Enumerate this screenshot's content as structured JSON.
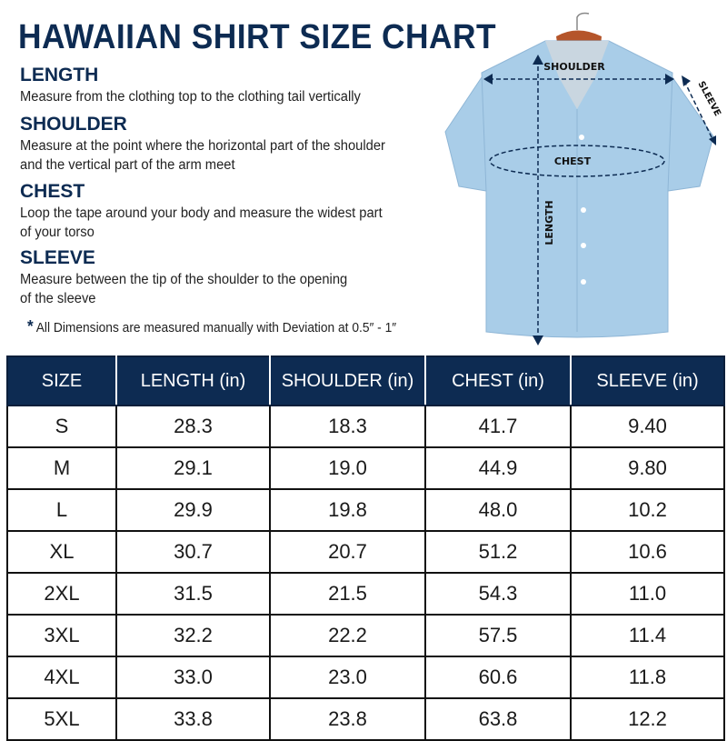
{
  "title": "HAWAIIAN SHIRT SIZE CHART",
  "sections": [
    {
      "heading": "LENGTH",
      "lines": [
        "Measure from the clothing top to the clothing tail vertically"
      ]
    },
    {
      "heading": "SHOULDER",
      "lines": [
        "Measure at the point where the horizontal part of the shoulder",
        "and the vertical part of the arm meet"
      ]
    },
    {
      "heading": "CHEST",
      "lines": [
        "Loop the tape around your body and measure the widest part",
        "of your torso"
      ]
    },
    {
      "heading": "SLEEVE",
      "lines": [
        "Measure between the tip of the shoulder to the opening",
        "of the sleeve"
      ]
    }
  ],
  "note": {
    "star": "*",
    "text": "All Dimensions are measured manually with Deviation at 0.5″ - 1″"
  },
  "diagram": {
    "shoulder": "SHOULDER",
    "chest": "CHEST",
    "length": "LENGTH",
    "sleeve": "SLEEVE",
    "shirt_color": "#a9cde8",
    "accent": "#0d2b52"
  },
  "table": {
    "headers": [
      "SIZE",
      "LENGTH (in)",
      "SHOULDER (in)",
      "CHEST (in)",
      "SLEEVE (in)"
    ],
    "rows": [
      [
        "S",
        "28.3",
        "18.3",
        "41.7",
        "9.40"
      ],
      [
        "M",
        "29.1",
        "19.0",
        "44.9",
        "9.80"
      ],
      [
        "L",
        "29.9",
        "19.8",
        "48.0",
        "10.2"
      ],
      [
        "XL",
        "30.7",
        "20.7",
        "51.2",
        "10.6"
      ],
      [
        "2XL",
        "31.5",
        "21.5",
        "54.3",
        "11.0"
      ],
      [
        "3XL",
        "32.2",
        "22.2",
        "57.5",
        "11.4"
      ],
      [
        "4XL",
        "33.0",
        "23.0",
        "60.6",
        "11.8"
      ],
      [
        "5XL",
        "33.8",
        "23.8",
        "63.8",
        "12.2"
      ]
    ]
  }
}
